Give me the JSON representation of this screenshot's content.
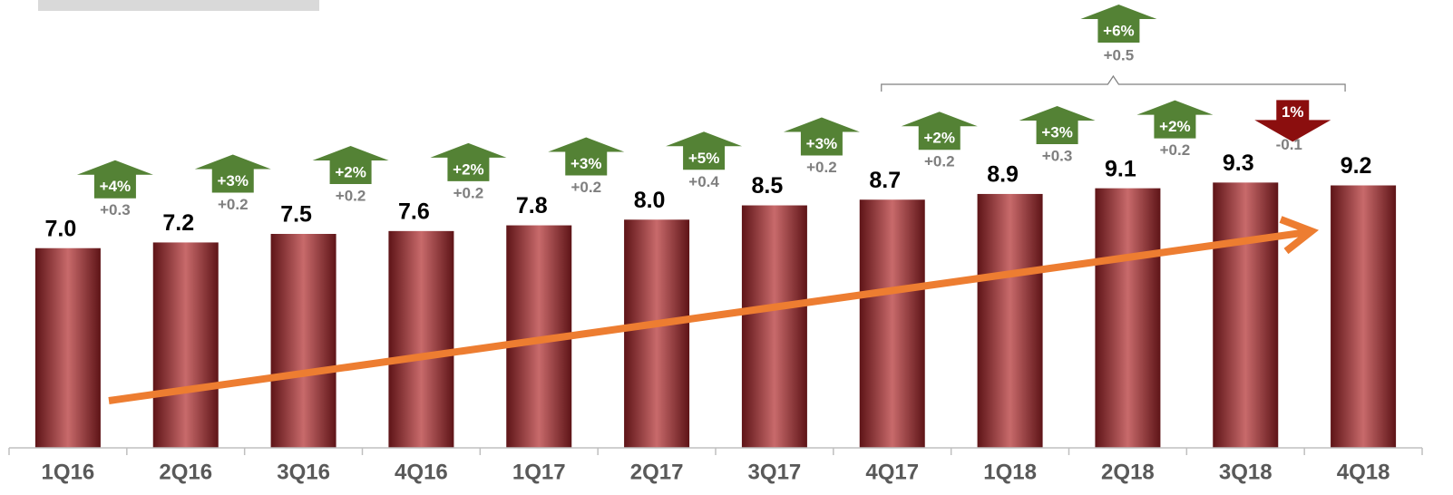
{
  "chart_data": {
    "type": "bar",
    "categories": [
      "1Q16",
      "2Q16",
      "3Q16",
      "4Q16",
      "1Q17",
      "2Q17",
      "3Q17",
      "4Q17",
      "1Q18",
      "2Q18",
      "3Q18",
      "4Q18"
    ],
    "values": [
      7.0,
      7.2,
      7.5,
      7.6,
      7.8,
      8.0,
      8.5,
      8.7,
      8.9,
      9.1,
      9.3,
      9.2
    ],
    "value_labels": [
      "7.0",
      "7.2",
      "7.5",
      "7.6",
      "7.8",
      "8.0",
      "8.5",
      "8.7",
      "8.9",
      "9.1",
      "9.3",
      "9.2"
    ],
    "ylim": [
      0,
      15
    ],
    "color": "#7a2226",
    "change_pct": [
      "+4%",
      "+3%",
      "+2%",
      "+2%",
      "+3%",
      "+5%",
      "+3%",
      "+2%",
      "+3%",
      "+2%",
      "1%"
    ],
    "change_abs": [
      "+0.3",
      "+0.2",
      "+0.2",
      "+0.2",
      "+0.2",
      "+0.4",
      "+0.2",
      "+0.2",
      "+0.3",
      "+0.2",
      "-0.1"
    ],
    "change_direction": [
      "up",
      "up",
      "up",
      "up",
      "up",
      "up",
      "up",
      "up",
      "up",
      "up",
      "down"
    ],
    "period_change": {
      "pct": "+6%",
      "abs": "+0.5"
    }
  }
}
